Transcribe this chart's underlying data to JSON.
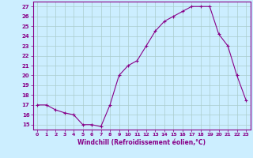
{
  "x": [
    0,
    1,
    2,
    3,
    4,
    5,
    6,
    7,
    8,
    9,
    10,
    11,
    12,
    13,
    14,
    15,
    16,
    17,
    18,
    19,
    20,
    21,
    22,
    23
  ],
  "y": [
    17,
    17,
    16.5,
    16.2,
    16,
    15,
    15,
    14.8,
    17,
    20,
    21,
    21.5,
    23,
    24.5,
    25.5,
    26,
    26.5,
    27,
    27,
    27,
    24.2,
    23,
    20,
    17.5
  ],
  "line_color": "#880088",
  "marker": "+",
  "bg_color": "#cceeff",
  "grid_color": "#aacccc",
  "xlabel": "Windchill (Refroidissement éolien,°C)",
  "xlabel_color": "#880088",
  "ylabel_ticks": [
    15,
    16,
    17,
    18,
    19,
    20,
    21,
    22,
    23,
    24,
    25,
    26,
    27
  ],
  "xlim": [
    -0.5,
    23.5
  ],
  "ylim": [
    14.5,
    27.5
  ],
  "tick_color": "#880088",
  "spine_color": "#880088"
}
